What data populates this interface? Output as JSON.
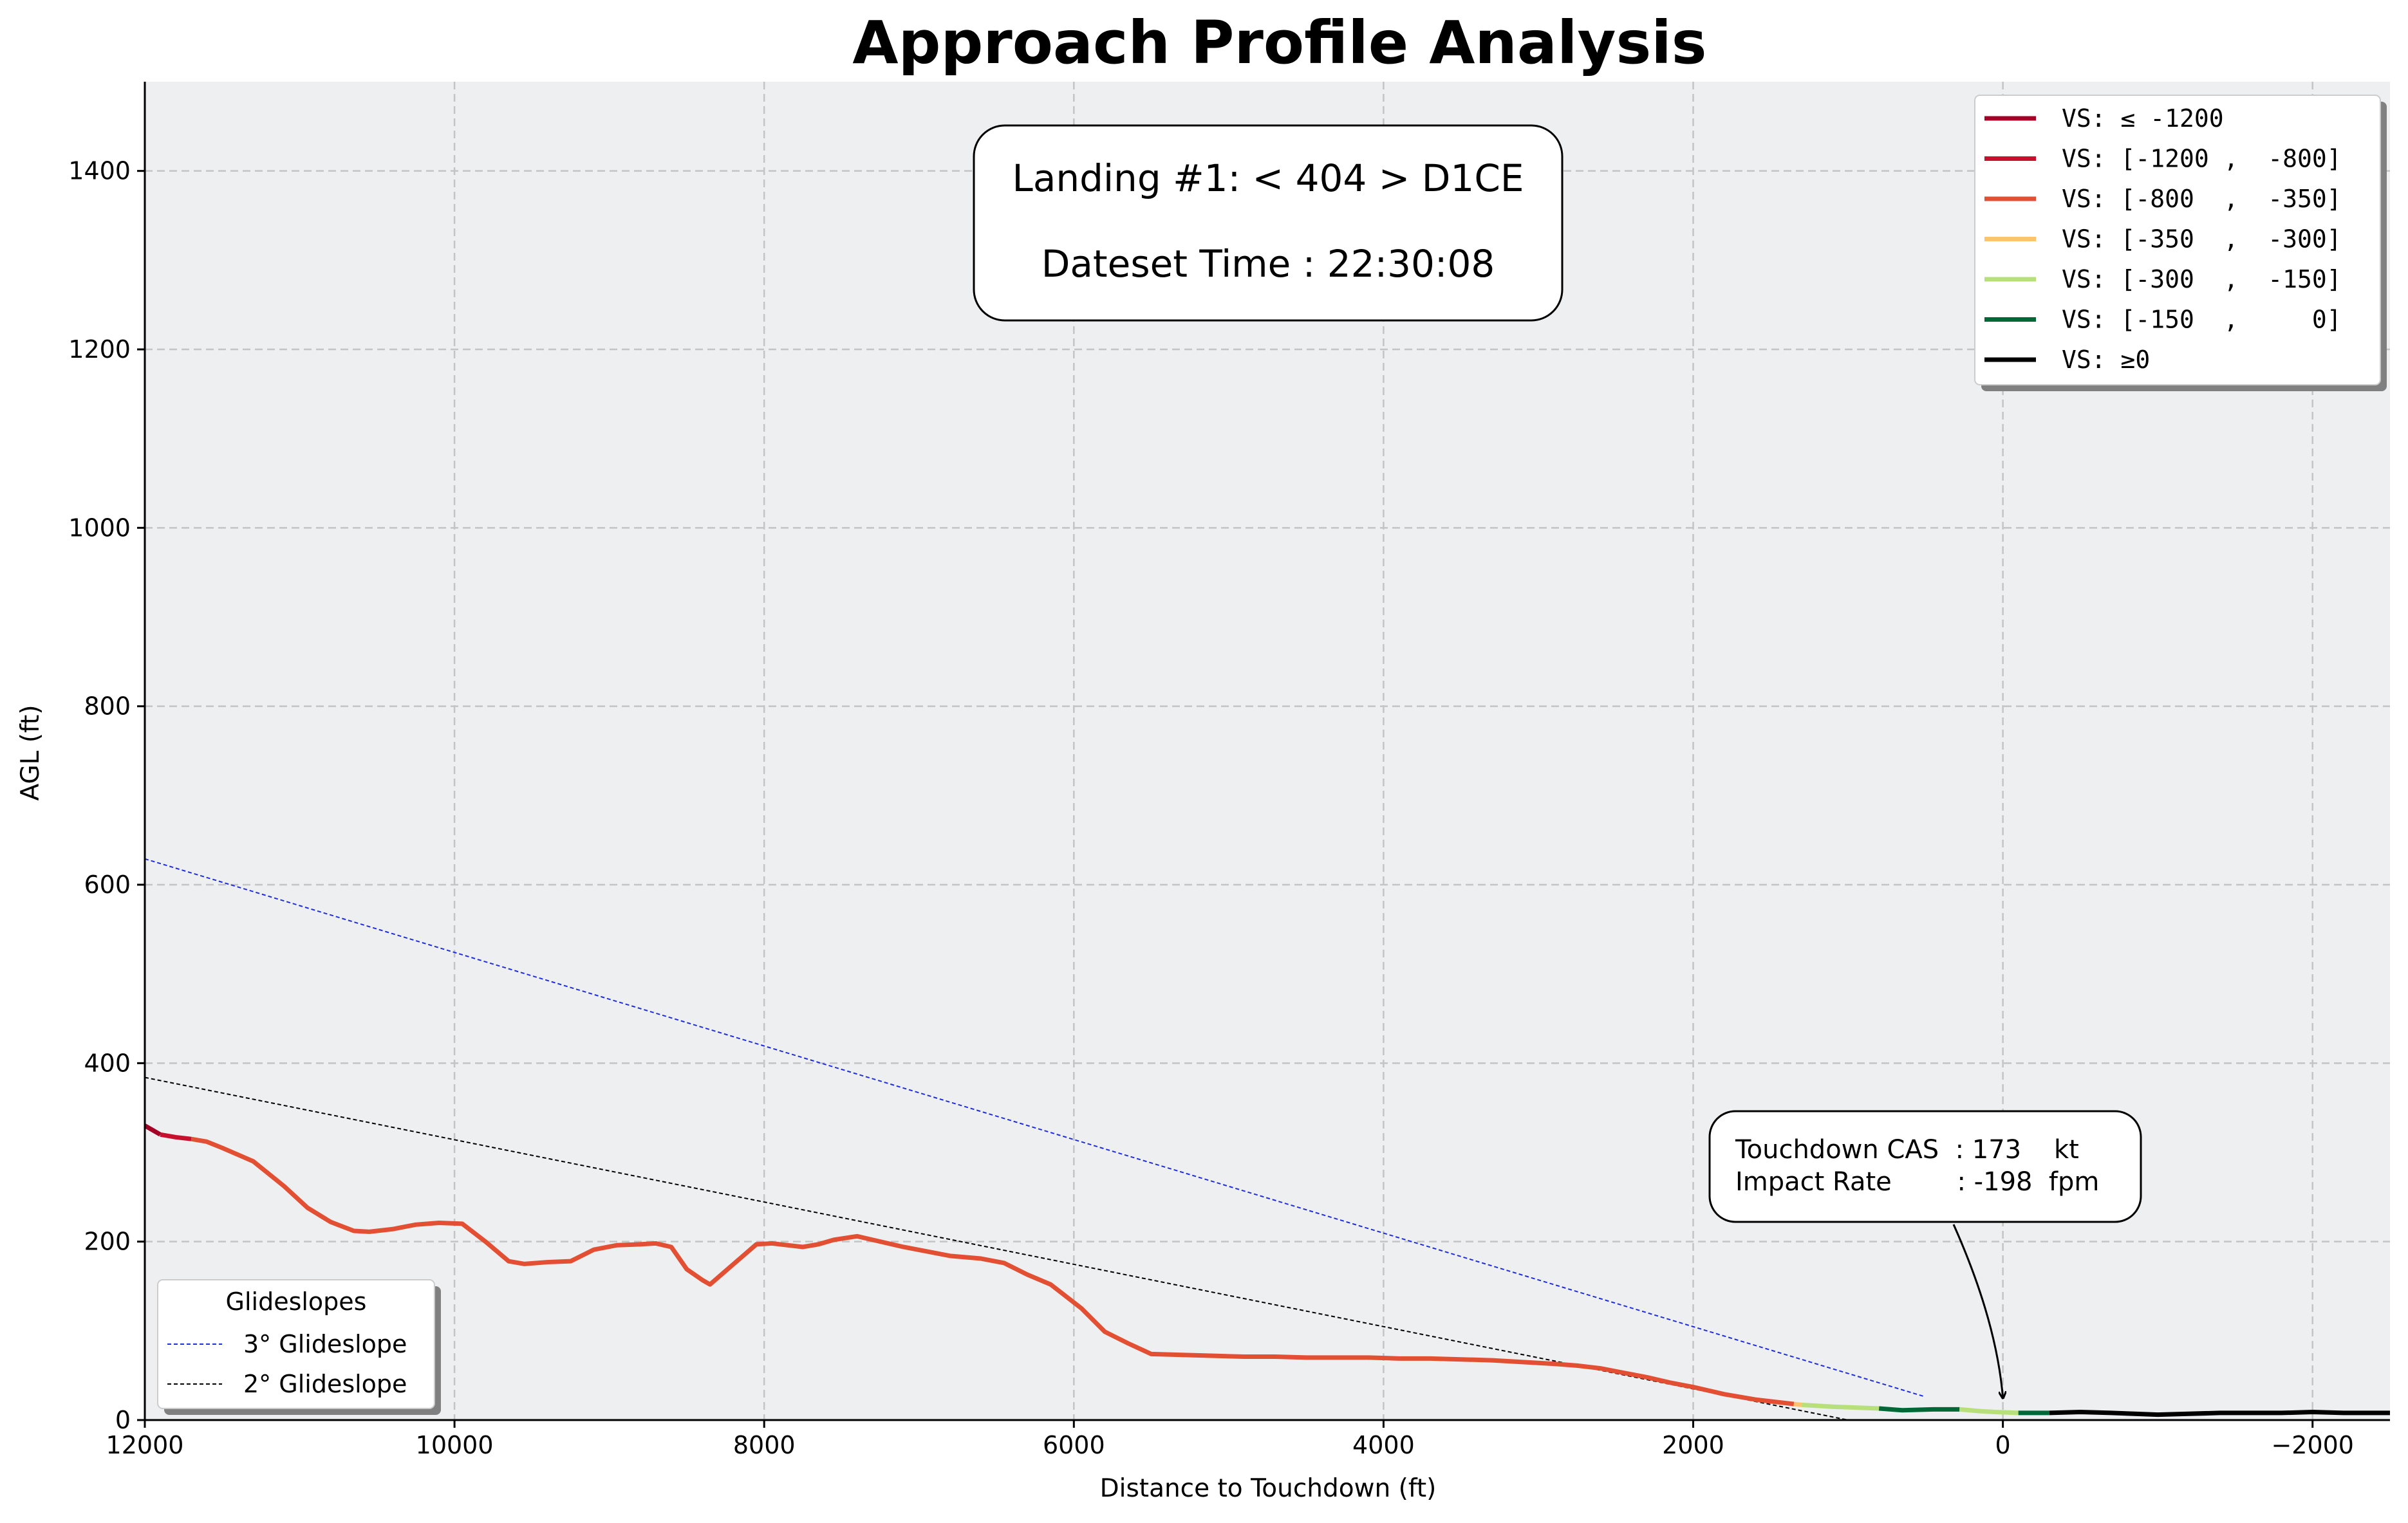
{
  "chart_data": {
    "type": "line",
    "title": "Approach Profile Analysis",
    "xlabel": "Distance to Touchdown (ft)",
    "ylabel": "AGL (ft)",
    "xlim": [
      12000,
      -2500
    ],
    "ylim": [
      0,
      1500
    ],
    "x_axis_inverted": true,
    "grid": true,
    "x_ticks": [
      12000,
      10000,
      8000,
      6000,
      4000,
      2000,
      0,
      -2000
    ],
    "x_tick_labels": [
      "12000",
      "10000",
      "8000",
      "6000",
      "4000",
      "2000",
      "0",
      "−2000"
    ],
    "y_ticks": [
      0,
      200,
      400,
      600,
      800,
      1000,
      1200,
      1400
    ],
    "y_tick_labels": [
      "0",
      "200",
      "400",
      "600",
      "800",
      "1000",
      "1200",
      "1400"
    ],
    "info_box": {
      "line1": "Landing #1: < 404 > D1CE",
      "line2": "Dateset Time : 22:30:08"
    },
    "vs_legend": {
      "placement": "top-right",
      "entries": [
        {
          "label": "VS: ≤ -1200",
          "color": "#a50026"
        },
        {
          "label": "VS: [-1200 ,  -800]",
          "color": "#c8102e"
        },
        {
          "label": "VS: [-800  ,  -350]",
          "color": "#e34f33"
        },
        {
          "label": "VS: [-350  ,  -300]",
          "color": "#fdc46a"
        },
        {
          "label": "VS: [-300  ,  -150]",
          "color": "#b8e07a"
        },
        {
          "label": "VS: [-150  ,     0]",
          "color": "#006837"
        },
        {
          "label": "VS: ≥0",
          "color": "#000000"
        }
      ]
    },
    "glideslope_legend": {
      "placement": "lower-left",
      "title": "Glideslopes",
      "entries": [
        {
          "label": "3° Glideslope",
          "color": "#1f2ddb"
        },
        {
          "label": "2° Glideslope",
          "color": "#000000"
        }
      ]
    },
    "glideslopes": [
      {
        "name": "3° Glideslope",
        "color": "#1f2ddb",
        "x": [
          12000,
          500
        ],
        "y": [
          629,
          26
        ]
      },
      {
        "name": "2° Glideslope",
        "color": "#000000",
        "x": [
          12000,
          1000
        ],
        "y": [
          384,
          0
        ]
      }
    ],
    "series": [
      {
        "vs_band": "VS: ≤ -1200",
        "color": "#a50026",
        "x": [
          12000,
          11950,
          11900
        ],
        "y": [
          330,
          325,
          320
        ]
      },
      {
        "vs_band": "VS: [-1200 ,  -800]",
        "color": "#c8102e",
        "x": [
          11900,
          11800,
          11700
        ],
        "y": [
          320,
          317,
          315
        ]
      },
      {
        "vs_band": "VS: [-800  ,  -350]",
        "color": "#e34f33",
        "x": [
          11700,
          11600,
          11500,
          11300,
          11100,
          10950,
          10800,
          10650,
          10550,
          10400,
          10250,
          10100,
          9950,
          9800,
          9650,
          9550,
          9400,
          9250,
          9100,
          8950,
          8800,
          8700,
          8600,
          8500,
          8400,
          8350,
          8250,
          8150,
          8050,
          7950,
          7750,
          7650,
          7550,
          7400,
          7300,
          7100,
          6800,
          6600,
          6450,
          6300,
          6150,
          5950,
          5800,
          5650,
          5500,
          5300,
          5100,
          4900,
          4700,
          4500,
          4300,
          4100,
          3900,
          3700,
          3500,
          3300,
          3100,
          2900,
          2750,
          2600,
          2450,
          2300,
          2150,
          2000,
          1800,
          1600,
          1350
        ],
        "y": [
          315,
          312,
          305,
          290,
          262,
          238,
          222,
          212,
          211,
          214,
          219,
          221,
          220,
          200,
          178,
          175,
          177,
          178,
          191,
          196,
          197,
          198,
          194,
          169,
          157,
          152,
          167,
          182,
          197,
          198,
          194,
          197,
          202,
          206,
          202,
          194,
          184,
          181,
          176,
          163,
          152,
          125,
          99,
          86,
          74,
          73,
          72,
          71,
          71,
          70,
          70,
          70,
          69,
          69,
          68,
          67,
          65,
          63,
          61,
          58,
          53,
          48,
          42,
          37,
          29,
          23,
          18
        ]
      },
      {
        "vs_band": "VS: [-350  ,  -300]",
        "color": "#fdc46a",
        "x": [
          1350,
          1300
        ],
        "y": [
          18,
          17
        ]
      },
      {
        "vs_band": "VS: [-300  ,  -150]",
        "color": "#b8e07a",
        "x": [
          1300,
          1100,
          950,
          800
        ],
        "y": [
          17,
          15,
          14,
          13
        ]
      },
      {
        "vs_band": "VS: [-150  ,     0]",
        "color": "#006837",
        "x": [
          800,
          650,
          450,
          280
        ],
        "y": [
          13,
          11,
          12,
          12
        ]
      },
      {
        "vs_band": "VS: [-300  ,  -150]",
        "color": "#b8e07a",
        "x": [
          280,
          150,
          50,
          -100
        ],
        "y": [
          12,
          10,
          9,
          8
        ]
      },
      {
        "vs_band": "VS: [-150  ,     0]",
        "color": "#006837",
        "x": [
          -100,
          -300
        ],
        "y": [
          8,
          8
        ]
      },
      {
        "vs_band": "VS: ≥0",
        "color": "#000000",
        "x": [
          -300,
          -500,
          -700,
          -850,
          -1000,
          -1200,
          -1400,
          -1600,
          -1800,
          -2000,
          -2200,
          -2400,
          -2500
        ],
        "y": [
          8,
          9,
          8,
          7,
          6,
          7,
          8,
          8,
          8,
          9,
          8,
          8,
          8
        ]
      }
    ],
    "annotation": {
      "line1": "Touchdown CAS  : 173    kt",
      "line2": "Impact Rate        : -198  fpm",
      "points_to": {
        "x": 0,
        "y": 25
      }
    }
  }
}
